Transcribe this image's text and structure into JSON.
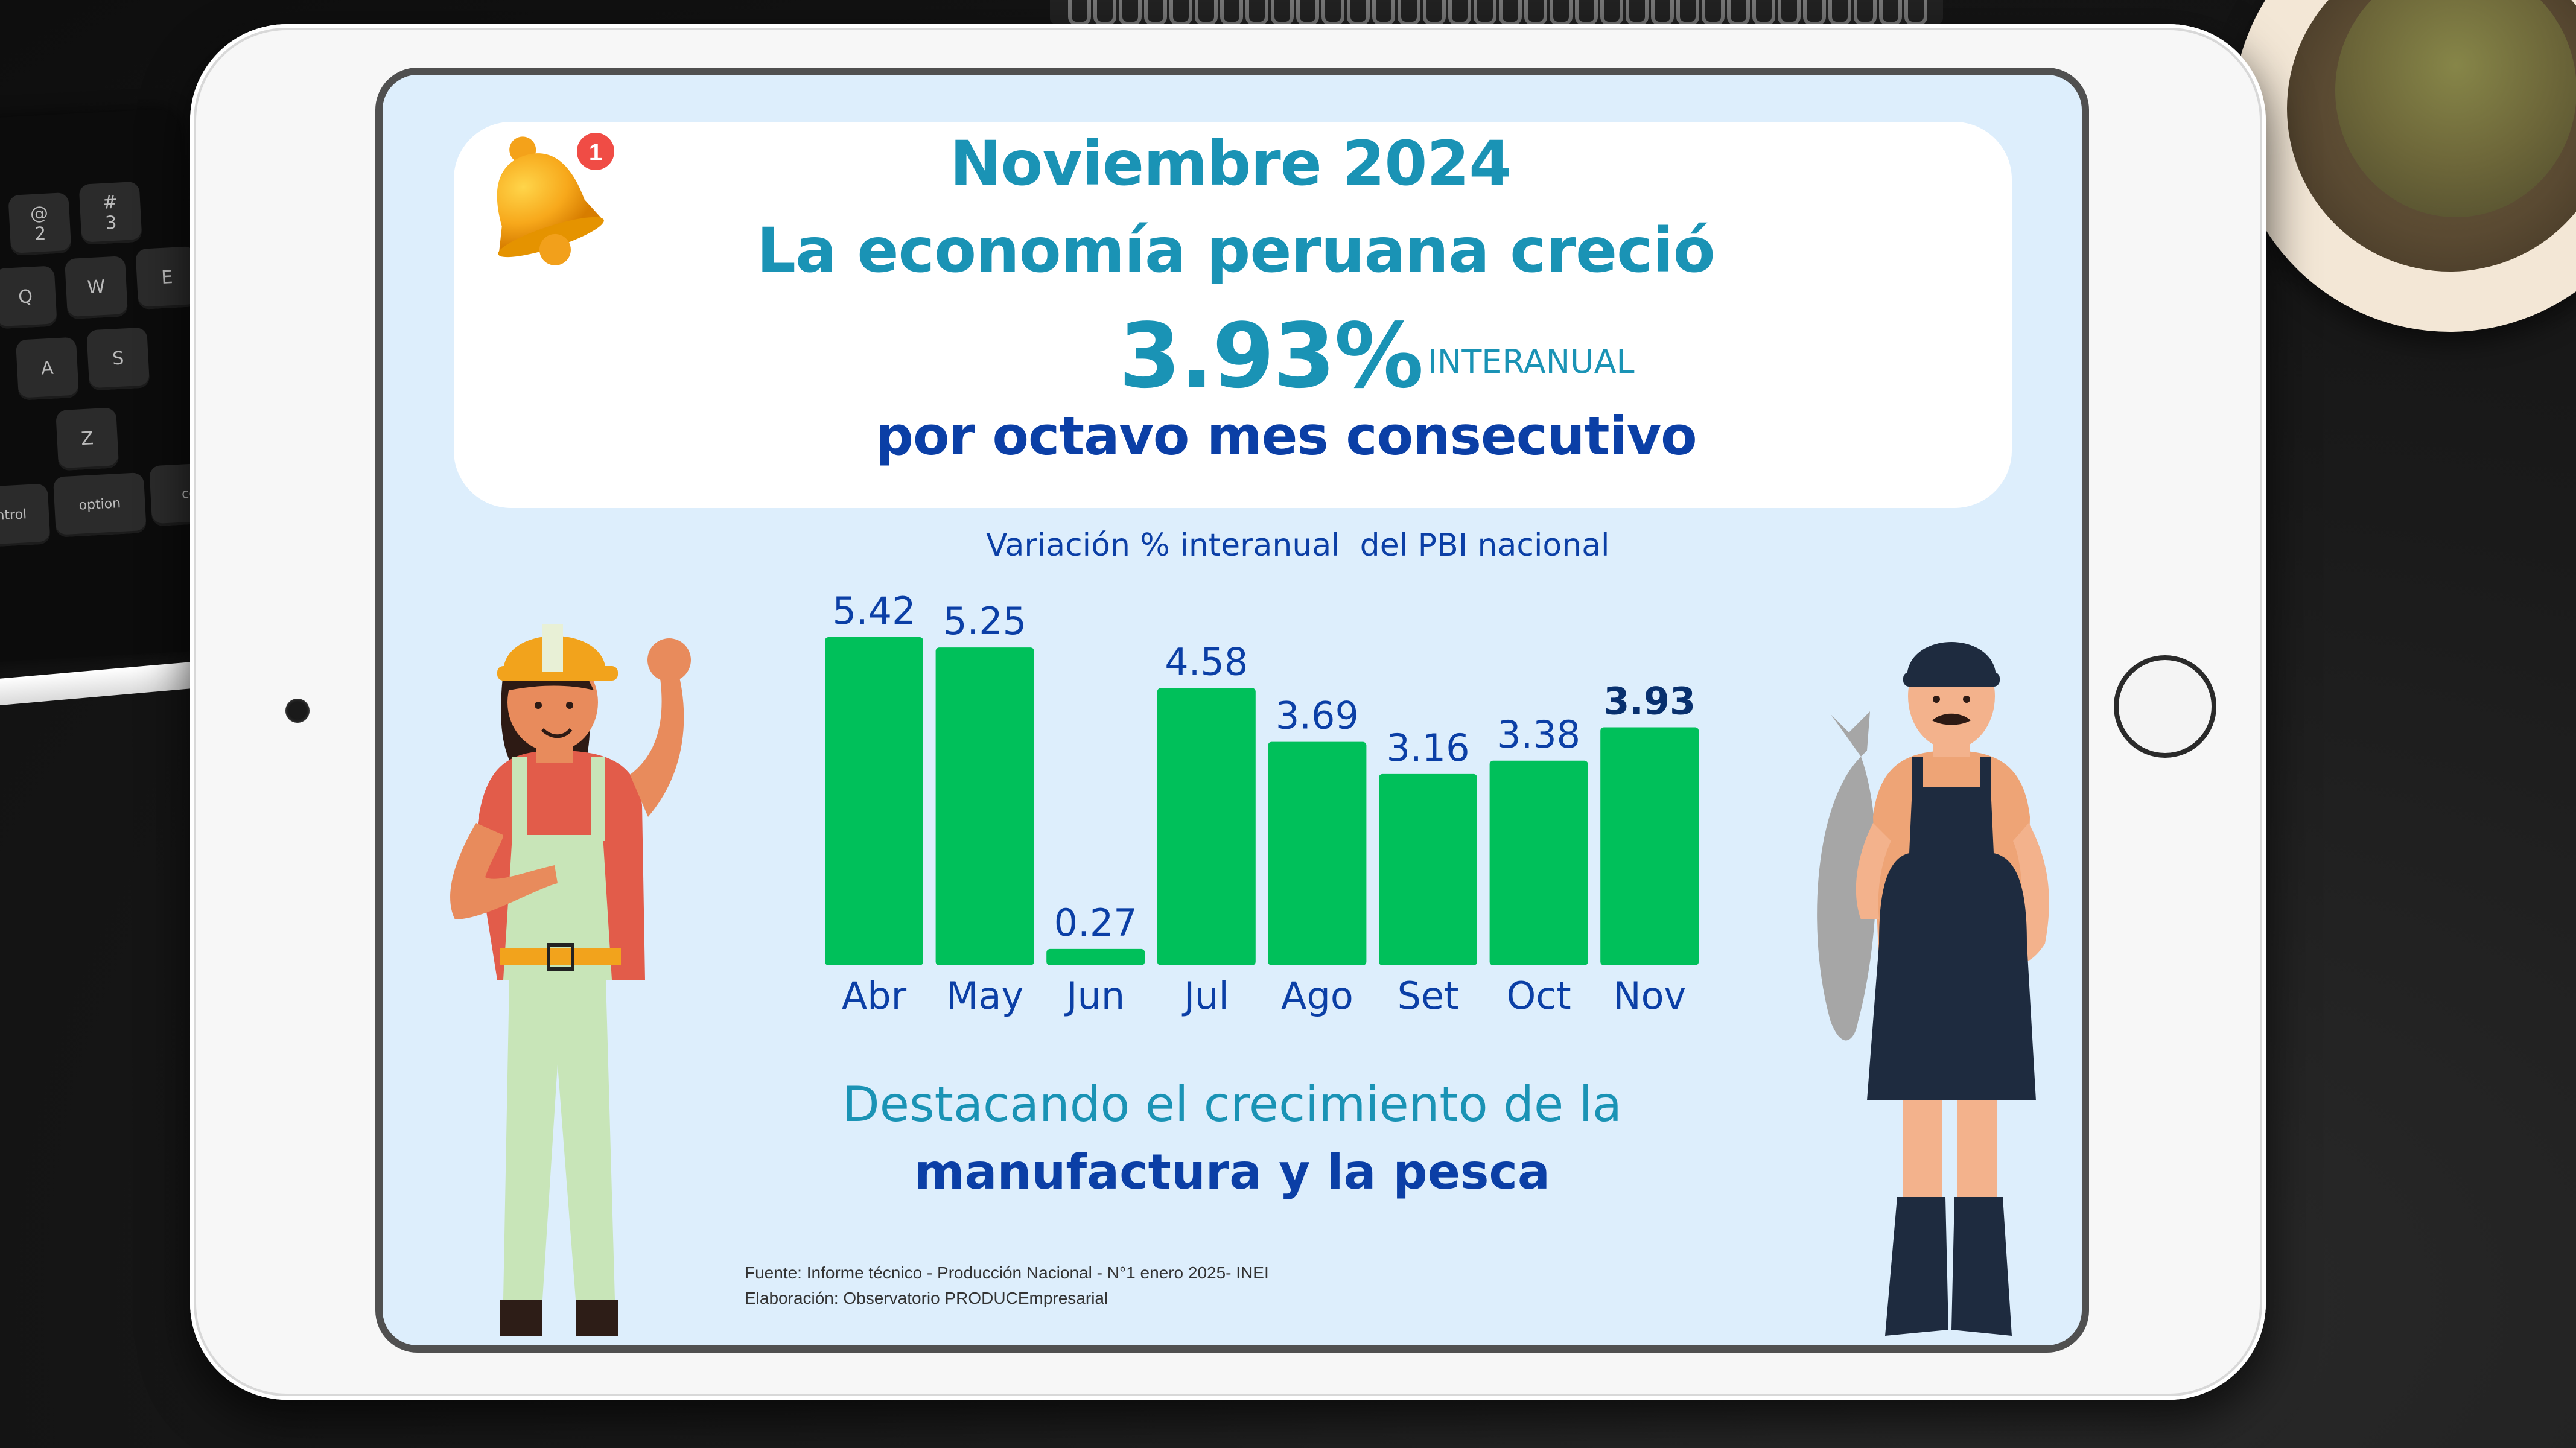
{
  "header": {
    "month": "Noviembre 2024",
    "headline": "La economía peruana creció",
    "growth_value": "3.93%",
    "growth_unit": "INTERANUAL",
    "subheadline": "por octavo mes consecutivo"
  },
  "bell_badge": "1",
  "chart_data": {
    "type": "bar",
    "title": "Variación % interanual  del PBI nacional",
    "categories": [
      "Abr",
      "May",
      "Jun",
      "Jul",
      "Ago",
      "Set",
      "Oct",
      "Nov"
    ],
    "values": [
      5.42,
      5.25,
      0.27,
      4.58,
      3.69,
      3.16,
      3.38,
      3.93
    ],
    "value_labels": [
      "5.42",
      "5.25",
      "0.27",
      "4.58",
      "3.69",
      "3.16",
      "3.38",
      "3.93"
    ],
    "highlight_index": 7,
    "bar_color": "#00c05a",
    "ylim": [
      0,
      5.42
    ]
  },
  "highlight": {
    "line1": "Destacando el crecimiento de la",
    "line2": "manufactura y la pesca"
  },
  "footer": {
    "source": "Fuente: Informe técnico - Producción Nacional - N°1 enero 2025- INEI",
    "credit": "Elaboración: Observatorio PRODUCEmpresarial"
  },
  "keyboard_keys": [
    "@\n2",
    "#\n3",
    "Q",
    "W",
    "E",
    "A",
    "S",
    "Z",
    "control",
    "option",
    "com"
  ],
  "colors": {
    "teal": "#1a93b5",
    "navy": "#0b3fa6",
    "bar": "#00c05a",
    "screen_bg": "#ddeefc"
  }
}
